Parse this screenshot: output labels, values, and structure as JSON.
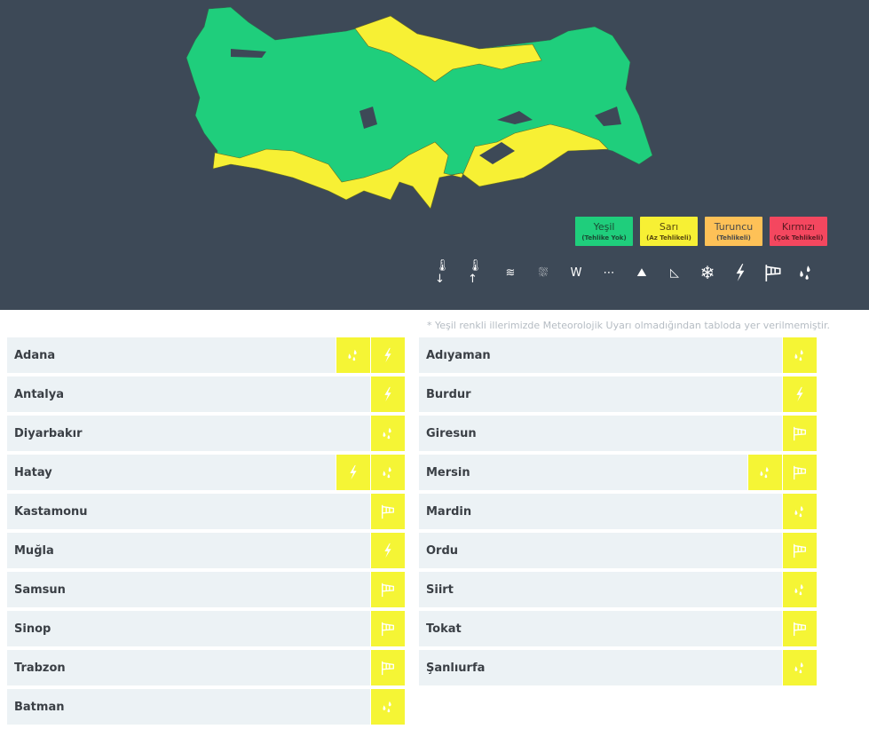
{
  "legend": [
    {
      "title": "Yeşil",
      "sub": "(Tehlike Yok)",
      "color": "#1fce7c",
      "text": "#1a4a33"
    },
    {
      "title": "Sarı",
      "sub": "(Az Tehlikeli)",
      "color": "#f7f034",
      "text": "#5a4a10"
    },
    {
      "title": "Turuncu",
      "sub": "(Tehlikeli)",
      "color": "#fec157",
      "text": "#4a4a4a"
    },
    {
      "title": "Kırmızı",
      "sub": "(Çok Tehlikeli)",
      "color": "#f4475f",
      "text": "#5a1a22"
    }
  ],
  "hazard_icons": [
    "cold-icon",
    "heat-icon",
    "fog-icon",
    "snow-melt-icon",
    "icicle-icon",
    "sandstorm-icon",
    "avalanche-icon",
    "landslide-icon",
    "snowflake-icon",
    "lightning-icon",
    "wind-icon",
    "rain-icon"
  ],
  "note": "* Yeşil renkli illerimizde Meteorolojik Uyarı olmadığından tabloda yer verilmemiştir.",
  "left": [
    {
      "name": "Adana",
      "icons": [
        "rain",
        "lightning"
      ]
    },
    {
      "name": "Antalya",
      "icons": [
        "lightning"
      ]
    },
    {
      "name": "Diyarbakır",
      "icons": [
        "rain"
      ]
    },
    {
      "name": "Hatay",
      "icons": [
        "lightning",
        "rain"
      ]
    },
    {
      "name": "Kastamonu",
      "icons": [
        "wind"
      ]
    },
    {
      "name": "Muğla",
      "icons": [
        "lightning"
      ]
    },
    {
      "name": "Samsun",
      "icons": [
        "wind"
      ]
    },
    {
      "name": "Sinop",
      "icons": [
        "wind"
      ]
    },
    {
      "name": "Trabzon",
      "icons": [
        "wind"
      ]
    },
    {
      "name": "Batman",
      "icons": [
        "rain"
      ]
    }
  ],
  "right": [
    {
      "name": "Adıyaman",
      "icons": [
        "rain"
      ]
    },
    {
      "name": "Burdur",
      "icons": [
        "lightning"
      ]
    },
    {
      "name": "Giresun",
      "icons": [
        "wind"
      ]
    },
    {
      "name": "Mersin",
      "icons": [
        "rain",
        "wind"
      ]
    },
    {
      "name": "Mardin",
      "icons": [
        "rain"
      ]
    },
    {
      "name": "Ordu",
      "icons": [
        "wind"
      ]
    },
    {
      "name": "Siirt",
      "icons": [
        "rain"
      ]
    },
    {
      "name": "Tokat",
      "icons": [
        "wind"
      ]
    },
    {
      "name": "Şanlıurfa",
      "icons": [
        "rain"
      ]
    }
  ],
  "colors": {
    "header": "#3d4957",
    "green": "#1fce7c",
    "yellow": "#f7f034",
    "row": "#ecf2f5"
  }
}
